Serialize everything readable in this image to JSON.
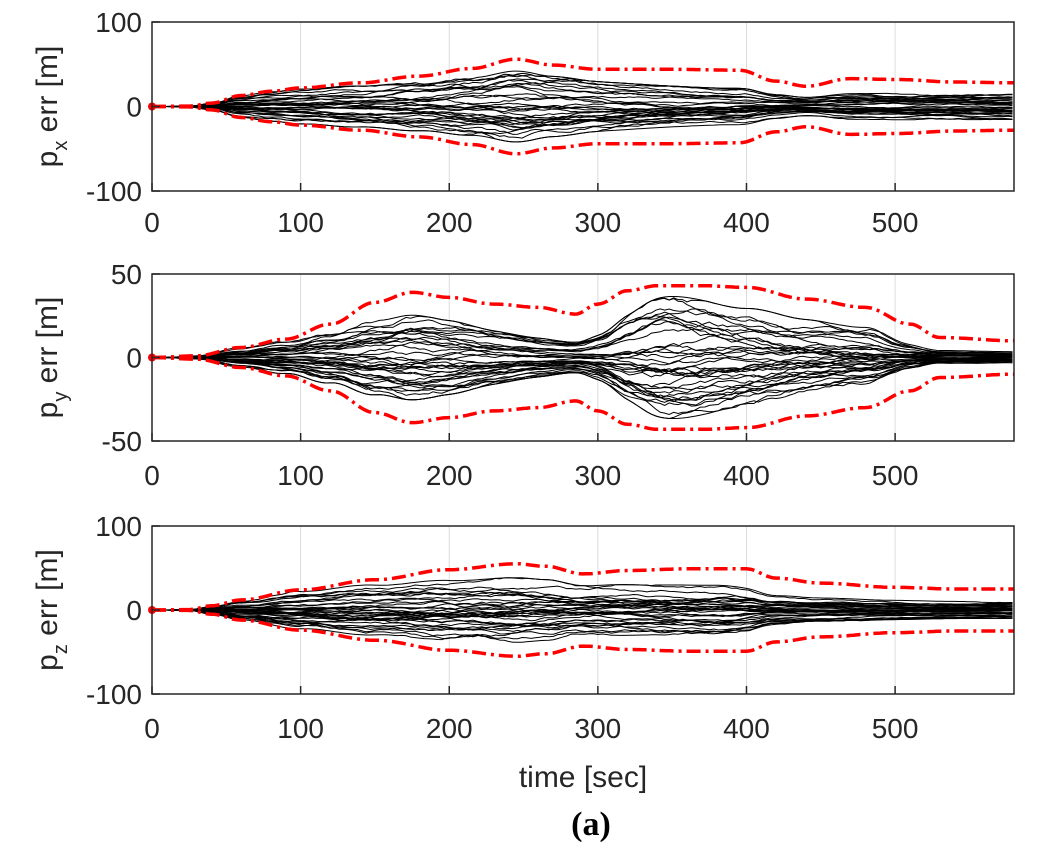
{
  "chart_data": [
    {
      "type": "line",
      "ylabel_main": "p",
      "ylabel_sub": "x",
      "ylabel_rest": " err [m]",
      "xlim": [
        0,
        580
      ],
      "ylim": [
        -100,
        100
      ],
      "xticks": [
        "0",
        "100",
        "200",
        "300",
        "400",
        "500"
      ],
      "yticks": [
        "-100",
        "0",
        "100"
      ],
      "bound_color": "#ff0000",
      "trace_color": "#000000",
      "envelope": {
        "x": [
          0,
          25,
          40,
          60,
          80,
          100,
          140,
          180,
          215,
          245,
          270,
          300,
          350,
          395,
          420,
          440,
          470,
          500,
          540,
          580
        ],
        "y": [
          0,
          0.5,
          4,
          13,
          18,
          22,
          28,
          36,
          45,
          56,
          49,
          44,
          44,
          43,
          30,
          24,
          33,
          32,
          29,
          28
        ]
      },
      "traces": {
        "count": 34,
        "x": [
          0,
          30,
          240,
          395,
          440,
          580
        ],
        "spread": [
          0,
          1,
          0.75,
          0.5,
          0.45,
          0.55
        ]
      }
    },
    {
      "type": "line",
      "ylabel_main": "p",
      "ylabel_sub": "y",
      "ylabel_rest": " err [m]",
      "xlim": [
        0,
        580
      ],
      "ylim": [
        -50,
        50
      ],
      "xticks": [
        "0",
        "100",
        "200",
        "300",
        "400",
        "500"
      ],
      "yticks": [
        "-50",
        "0",
        "50"
      ],
      "bound_color": "#ff0000",
      "trace_color": "#000000",
      "envelope": {
        "x": [
          0,
          30,
          60,
          90,
          120,
          150,
          175,
          200,
          230,
          260,
          285,
          300,
          320,
          340,
          370,
          400,
          440,
          480,
          510,
          530,
          580
        ],
        "y": [
          0,
          1,
          6,
          11,
          20,
          33,
          39,
          36,
          32,
          30,
          26,
          32,
          40,
          43,
          43,
          42,
          35,
          30,
          20,
          12,
          10
        ]
      },
      "traces": {
        "count": 38,
        "x": [
          0,
          30,
          175,
          285,
          350,
          400,
          480,
          520,
          580
        ],
        "spread": [
          0,
          1,
          0.65,
          0.35,
          0.85,
          0.7,
          0.6,
          0.35,
          0.35
        ]
      }
    },
    {
      "type": "line",
      "ylabel_main": "p",
      "ylabel_sub": "z",
      "ylabel_rest": " err [m]",
      "xlim": [
        0,
        580
      ],
      "ylim": [
        -100,
        100
      ],
      "xticks": [
        "0",
        "100",
        "200",
        "300",
        "400",
        "500"
      ],
      "yticks": [
        "-100",
        "0",
        "100"
      ],
      "bound_color": "#ff0000",
      "trace_color": "#000000",
      "xlabel": "time [sec]",
      "envelope": {
        "x": [
          0,
          25,
          40,
          60,
          100,
          150,
          200,
          245,
          265,
          290,
          320,
          360,
          400,
          420,
          450,
          500,
          540,
          580
        ],
        "y": [
          0,
          0.5,
          5,
          12,
          24,
          36,
          48,
          55,
          52,
          43,
          47,
          49,
          49,
          38,
          32,
          27,
          25,
          25
        ]
      },
      "traces": {
        "count": 36,
        "x": [
          0,
          30,
          245,
          380,
          420,
          580
        ],
        "spread": [
          0,
          1,
          0.7,
          0.6,
          0.45,
          0.4
        ]
      }
    }
  ],
  "caption": "(a)"
}
